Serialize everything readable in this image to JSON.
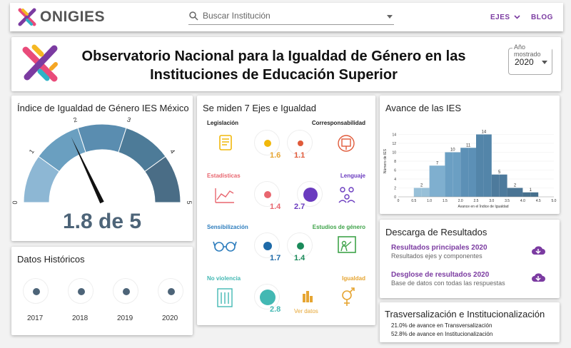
{
  "topbar": {
    "brand": "ONIGIES",
    "search_placeholder": "Buscar Institución",
    "ejes_label": "EJES",
    "blog_label": "BLOG"
  },
  "header": {
    "title_line1": "Observatorio Nacional para la Igualdad de Género en las",
    "title_line2": "Instituciones de Educación Superior",
    "year_label": "Año mostrado",
    "year_value": "2020"
  },
  "gauge": {
    "title": "Índice de Igualdad de Género IES México",
    "value": 1.8,
    "max": 5,
    "display": "1.8 de 5",
    "ticks": [
      "0",
      "1",
      "2",
      "3",
      "4",
      "5"
    ]
  },
  "ejes": {
    "title": "Se miden 7 Ejes e Igualdad",
    "items": [
      {
        "label": "Legislación",
        "value": "1.6",
        "color": "#f1b80b"
      },
      {
        "label": "Corresponsabilidad",
        "value": "1.1",
        "color": "#e05a3a"
      },
      {
        "label": "Estadísticas",
        "value": "1.4",
        "color": "#e8666f"
      },
      {
        "label": "Lenguaje",
        "value": "2.7",
        "color": "#6a3bbf"
      },
      {
        "label": "Sensibilización",
        "value": "1.7",
        "color": "#2d7dbd"
      },
      {
        "label": "Estudios de género",
        "value": "1.4",
        "color": "#3fa34a"
      },
      {
        "label": "No violencia",
        "value": "2.8",
        "color": "#43b8b3"
      },
      {
        "label": "Igualdad",
        "value": "",
        "color": "#e6a532"
      }
    ],
    "ver_datos": "Ver datos"
  },
  "historicos": {
    "title": "Datos Históricos",
    "years": [
      "2017",
      "2018",
      "2019",
      "2020"
    ]
  },
  "avance": {
    "title": "Avance de las IES"
  },
  "chart_data": {
    "type": "bar",
    "ylabel": "Número de IES",
    "xlabel": "Avance en el Índice de Igualdad",
    "x_ticks": [
      "0",
      "0.5",
      "1.0",
      "1.5",
      "2.0",
      "2.5",
      "3.0",
      "3.5",
      "4.0",
      "4.5",
      "5.0"
    ],
    "y_ticks": [
      "0",
      "2",
      "4",
      "6",
      "8",
      "10",
      "12",
      "14"
    ],
    "ylim": [
      0,
      16
    ],
    "xlim": [
      0,
      5
    ],
    "bins": [
      [
        0.5,
        0.75
      ],
      [
        0.75,
        1.0
      ],
      [
        1.0,
        1.25
      ],
      [
        1.25,
        1.5
      ],
      [
        1.5,
        1.75
      ],
      [
        1.75,
        2.0
      ],
      [
        2.0,
        2.25
      ],
      [
        2.25,
        2.5
      ],
      [
        2.5,
        2.75
      ],
      [
        2.75,
        3.0
      ],
      [
        3.0,
        3.25
      ],
      [
        3.25,
        3.5
      ],
      [
        3.5,
        3.75
      ],
      [
        3.75,
        4.0
      ],
      [
        4.0,
        4.25
      ],
      [
        4.25,
        4.5
      ]
    ],
    "values": [
      2,
      2,
      7,
      7,
      10,
      10,
      11,
      11,
      14,
      14,
      5,
      5,
      2,
      2,
      1,
      1
    ],
    "data_labels": [
      {
        "x": 0.75,
        "y": 2,
        "text": "2"
      },
      {
        "x": 1.25,
        "y": 7,
        "text": "7"
      },
      {
        "x": 1.75,
        "y": 10,
        "text": "10"
      },
      {
        "x": 2.25,
        "y": 11,
        "text": "11"
      },
      {
        "x": 2.75,
        "y": 14,
        "text": "14"
      },
      {
        "x": 3.25,
        "y": 5,
        "text": "5"
      },
      {
        "x": 3.75,
        "y": 2,
        "text": "2"
      },
      {
        "x": 4.25,
        "y": 1,
        "text": "1"
      }
    ],
    "colors": [
      "#8fb8d3",
      "#6aa0c2",
      "#5a90b5",
      "#4e7fa2",
      "#4a7a9b",
      "#44708e"
    ]
  },
  "descarga": {
    "title": "Descarga de Resultados",
    "items": [
      {
        "title": "Resultados principales 2020",
        "subtitle": "Resultados ejes y componentes"
      },
      {
        "title": "Desglose de resultados 2020",
        "subtitle": "Base de datos con todas las respuestas"
      }
    ]
  },
  "trans": {
    "title": "Trasversalización e Institucionalización",
    "line1": "21.0% de avance en Transversalización",
    "line2": "52.8% de avance en Institucionalización"
  }
}
